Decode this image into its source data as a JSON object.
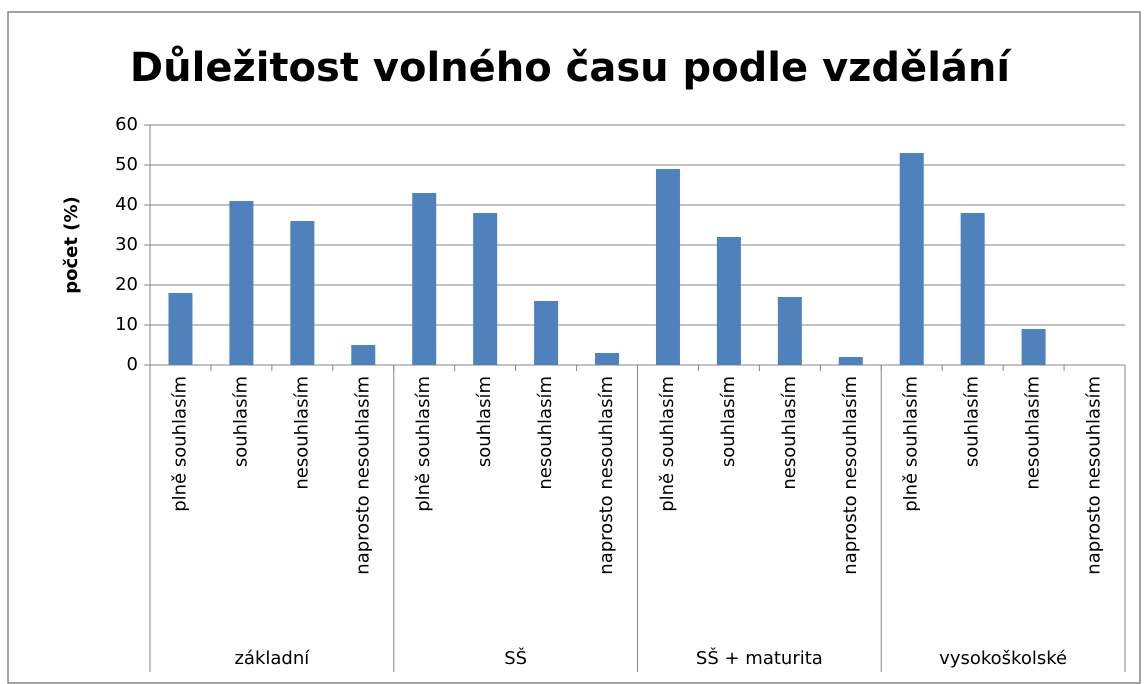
{
  "chart_data": {
    "type": "bar",
    "title": "Důležitost volného času podle vzdělání",
    "y_label": "počet (%)",
    "groups": [
      "základní",
      "SŠ",
      "SŠ + maturita",
      "vysokoškolské"
    ],
    "categories": [
      "plně souhlasím",
      "souhlasím",
      "nesouhlasím",
      "naprosto nesouhlasím",
      "plně souhlasím",
      "souhlasím",
      "nesouhlasím",
      "naprosto nesouhlasím",
      "plně souhlasím",
      "souhlasím",
      "nesouhlasím",
      "naprosto nesouhlasím",
      "plně souhlasím",
      "souhlasím",
      "nesouhlasím",
      "naprosto nesouhlasím"
    ],
    "values": [
      18,
      41,
      36,
      5,
      43,
      38,
      16,
      3,
      49,
      32,
      17,
      2,
      53,
      38,
      9,
      0
    ],
    "color": "#4f81bd",
    "ylim": [
      0,
      60
    ],
    "yticks": [
      0,
      10,
      20,
      30,
      40,
      50,
      60
    ],
    "grid": true
  }
}
